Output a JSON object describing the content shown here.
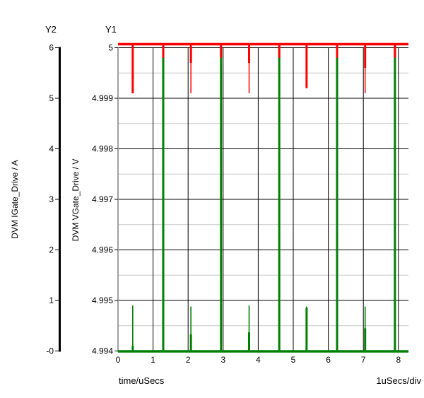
{
  "chart_data": {
    "type": "line",
    "title": "",
    "grid": {
      "major_color": "#000000",
      "minor_color": "#c8c8c8",
      "on": true
    },
    "x_axis": {
      "label": "time/uSecs",
      "div_label": "1uSecs/div",
      "tick_labels": [
        "0",
        "1",
        "2",
        "3",
        "4",
        "5",
        "6",
        "7",
        "8"
      ],
      "tick_values": [
        0,
        1,
        2,
        3,
        4,
        5,
        6,
        7,
        8
      ],
      "range": [
        0,
        8.3
      ],
      "units_per_div": 1
    },
    "y1_axis": {
      "name": "Y1",
      "label": "DVM VGate_Drive / V",
      "tick_labels": [
        "5",
        "4.999",
        "4.998",
        "4.997",
        "4.996",
        "4.995",
        "4.994"
      ],
      "tick_values": [
        5,
        4.999,
        4.998,
        4.997,
        4.996,
        4.995,
        4.994
      ],
      "range": [
        4.994,
        5
      ],
      "minor_divisions": 2,
      "bar_color": "#a0a0a0"
    },
    "y2_axis": {
      "name": "Y2",
      "label": "DVM IGate_Drive / A",
      "tick_labels": [
        "6",
        "5",
        "4",
        "3",
        "2",
        "1",
        "-0"
      ],
      "tick_values": [
        6,
        5,
        4,
        3,
        2,
        1,
        0
      ],
      "range": [
        0,
        6
      ],
      "bar_color": "#000000"
    },
    "series": [
      {
        "name": "DVM VGate_Drive",
        "axis": "Y1",
        "color": "#ff0000",
        "baseline_v": 5.0,
        "major_dips": [
          {
            "t": 0.42,
            "v_wide": 4.9991,
            "v_min": 4.9991
          },
          {
            "t": 2.08,
            "v_wide": 4.9997,
            "v_min": 4.9991
          },
          {
            "t": 3.74,
            "v_wide": 4.9997,
            "v_min": 4.9991
          },
          {
            "t": 5.38,
            "v_wide": 4.9992,
            "v_min": 4.9992
          },
          {
            "t": 7.05,
            "v_wide": 4.9996,
            "v_min": 4.9991
          }
        ],
        "minor_dips": [
          {
            "t": 1.29,
            "v": 4.9998
          },
          {
            "t": 2.94,
            "v": 4.9998
          },
          {
            "t": 4.6,
            "v": 4.9998
          },
          {
            "t": 6.25,
            "v": 4.9998
          },
          {
            "t": 7.9,
            "v": 4.9998
          }
        ]
      },
      {
        "name": "DVM IGate_Drive",
        "axis": "Y2",
        "color": "#008000",
        "baseline_a": 0,
        "tall_spikes": [
          {
            "t": 1.29,
            "a": 6
          },
          {
            "t": 2.94,
            "a": 6
          },
          {
            "t": 4.6,
            "a": 6
          },
          {
            "t": 6.25,
            "a": 6
          },
          {
            "t": 7.9,
            "a": 6
          }
        ],
        "short_spikes": [
          {
            "t": 0.42,
            "a": 0.9,
            "a_wide": 0.1
          },
          {
            "t": 2.08,
            "a": 0.88,
            "a_wide": 0.33
          },
          {
            "t": 3.74,
            "a": 0.9,
            "a_wide": 0.37
          },
          {
            "t": 5.38,
            "a": 0.88,
            "a_wide": 0.85
          },
          {
            "t": 7.05,
            "a": 0.88,
            "a_wide": 0.45
          }
        ]
      }
    ]
  }
}
